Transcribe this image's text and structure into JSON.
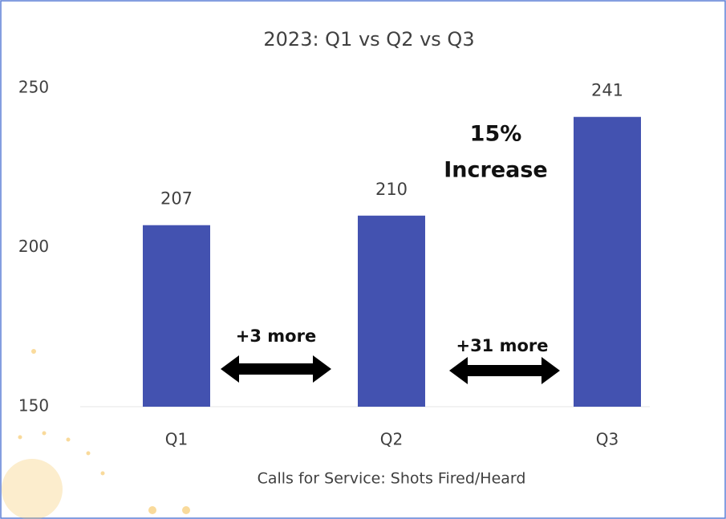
{
  "chart_data": {
    "type": "bar",
    "title": "2023: Q1 vs Q2 vs Q3",
    "x_label": "Calls for Service: Shots Fired/Heard",
    "categories": [
      "Q1",
      "Q2",
      "Q3"
    ],
    "values": [
      207,
      210,
      241
    ],
    "color": "#4352b0",
    "ylim": [
      150,
      250
    ],
    "yticks": [
      150,
      200,
      250
    ],
    "annotations": [
      "15%",
      "Increase",
      "+3 more",
      "+31 more"
    ]
  }
}
